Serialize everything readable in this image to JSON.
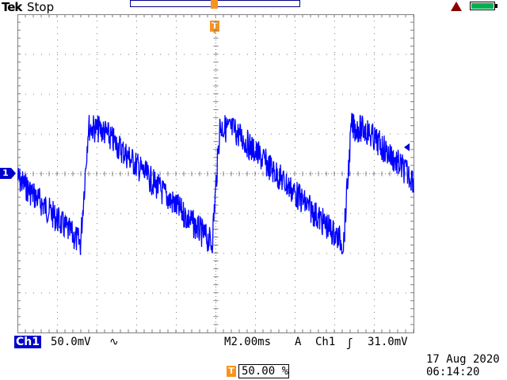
{
  "header": {
    "brand": "Tek",
    "acquisition_state": "Stop",
    "trigger_marker_glyph": "T",
    "alert_icon": "warning-triangle-icon",
    "battery_icon": "battery-full-icon"
  },
  "channel1": {
    "marker": "1",
    "label": "Ch1",
    "scale": "50.0mV",
    "coupling_symbol": "∿",
    "color": "#0000cd"
  },
  "horizontal": {
    "prefix": "M",
    "timebase": "2.00ms"
  },
  "trigger": {
    "mode": "A",
    "source": "Ch1",
    "slope_symbol": "ʃ",
    "level": "31.0mV",
    "position_glyph": "T",
    "position": "50.00 %",
    "color": "#f7941d"
  },
  "datetime": {
    "date": "17 Aug 2020",
    "time": "06:14:20"
  },
  "waveform": {
    "description_shape": "sawtooth-like with noise, three periods",
    "divisions_x": 10,
    "divisions_y": 8
  }
}
